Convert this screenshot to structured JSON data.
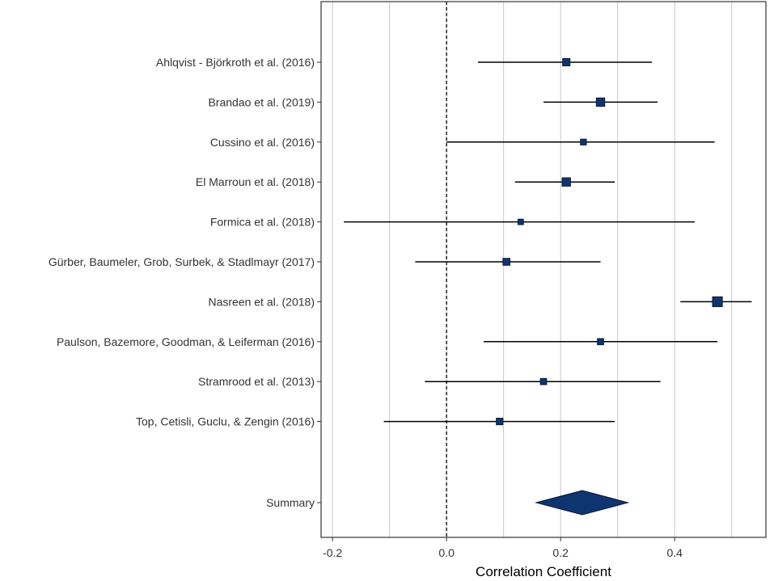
{
  "chart_data": {
    "type": "forest",
    "xlabel": "Correlation Coefficient",
    "xlim": [
      -0.22,
      0.56
    ],
    "x_ticks": [
      -0.2,
      0.0,
      0.2,
      0.4
    ],
    "x_tick_labels": [
      "-0.2",
      "0.0",
      "0.2",
      "0.4"
    ],
    "gridlines_x": [
      -0.2,
      -0.1,
      0.0,
      0.1,
      0.2,
      0.3,
      0.4,
      0.5
    ],
    "reference_line": 0.0,
    "grid": true,
    "studies": [
      {
        "label": "Ahlqvist - Björkroth et al. (2016)",
        "estimate": 0.21,
        "ci_low": 0.055,
        "ci_high": 0.36,
        "weight": 1.0
      },
      {
        "label": "Brandao et al. (2019)",
        "estimate": 0.27,
        "ci_low": 0.17,
        "ci_high": 0.37,
        "weight": 1.15
      },
      {
        "label": "Cussino et al. (2016)",
        "estimate": 0.24,
        "ci_low": 0.0,
        "ci_high": 0.47,
        "weight": 0.8
      },
      {
        "label": "El Marroun et al. (2018)",
        "estimate": 0.21,
        "ci_low": 0.12,
        "ci_high": 0.295,
        "weight": 1.15
      },
      {
        "label": "Formica et al. (2018)",
        "estimate": 0.13,
        "ci_low": -0.18,
        "ci_high": 0.435,
        "weight": 0.75
      },
      {
        "label": "Gürber, Baumeler, Grob, Surbek, & Stadlmayr (2017)",
        "estimate": 0.105,
        "ci_low": -0.055,
        "ci_high": 0.27,
        "weight": 0.95
      },
      {
        "label": "Nasreen et al. (2018)",
        "estimate": 0.475,
        "ci_low": 0.41,
        "ci_high": 0.535,
        "weight": 1.35
      },
      {
        "label": "Paulson, Bazemore, Goodman, & Leiferman (2016)",
        "estimate": 0.27,
        "ci_low": 0.065,
        "ci_high": 0.475,
        "weight": 0.85
      },
      {
        "label": "Stramrood et al. (2013)",
        "estimate": 0.17,
        "ci_low": -0.038,
        "ci_high": 0.375,
        "weight": 0.85
      },
      {
        "label": "Top, Cetisli, Guclu, & Zengin (2016)",
        "estimate": 0.093,
        "ci_low": -0.11,
        "ci_high": 0.295,
        "weight": 0.9
      }
    ],
    "summary": {
      "label": "Summary",
      "estimate": 0.238,
      "ci_low": 0.157,
      "ci_high": 0.318
    },
    "colors": {
      "marker": "#0e3570",
      "marker_edge": "#0a1a33",
      "line": "#000000",
      "grid": "#c8c8c8"
    }
  }
}
